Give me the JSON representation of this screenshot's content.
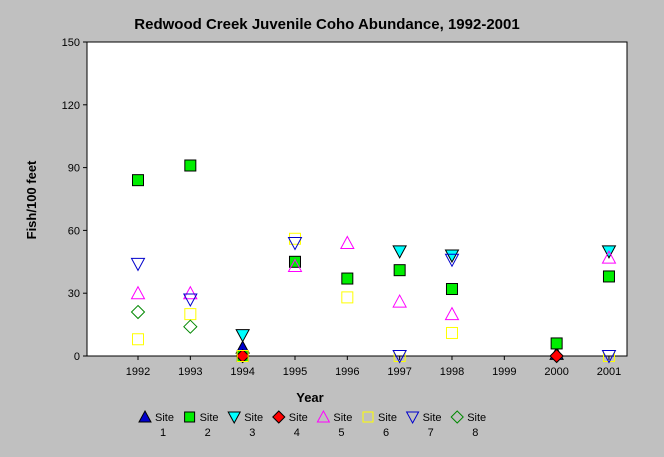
{
  "chart_data": {
    "type": "scatter",
    "title": "Redwood Creek Juvenile Coho Abundance, 1992-2001",
    "xlabel": "Year",
    "ylabel": "Fish/100 feet",
    "x": [
      1992,
      1993,
      1994,
      1995,
      1996,
      1997,
      1998,
      1999,
      2000,
      2001
    ],
    "x_tick_labels": [
      "1992",
      "1993",
      "1994",
      "1995",
      "1996",
      "1997",
      "1998",
      "1999",
      "2000",
      "2001"
    ],
    "ylim": [
      0,
      150
    ],
    "y_ticks": [
      0,
      30,
      60,
      90,
      120,
      150
    ],
    "y_tick_labels": [
      "0",
      "30",
      "60",
      "90",
      "120",
      "150"
    ],
    "grid": false,
    "legend_position": "bottom",
    "series": [
      {
        "name": "Site 1",
        "legend_line1": "Site",
        "legend_line2": "1",
        "marker": "triangle-up",
        "color": "#0000cc",
        "filled": true,
        "points": [
          {
            "x": 1994,
            "y": 4
          },
          {
            "x": 2000,
            "y": 1
          }
        ]
      },
      {
        "name": "Site 2",
        "legend_line1": "Site",
        "legend_line2": "2",
        "marker": "square",
        "color": "#00ee00",
        "filled": true,
        "points": [
          {
            "x": 1992,
            "y": 84
          },
          {
            "x": 1993,
            "y": 91
          },
          {
            "x": 1994,
            "y": 0
          },
          {
            "x": 1995,
            "y": 45
          },
          {
            "x": 1996,
            "y": 37
          },
          {
            "x": 1997,
            "y": 41
          },
          {
            "x": 1998,
            "y": 32
          },
          {
            "x": 2000,
            "y": 6
          },
          {
            "x": 2001,
            "y": 38
          }
        ]
      },
      {
        "name": "Site 3",
        "legend_line1": "Site",
        "legend_line2": "3",
        "marker": "triangle-down",
        "color": "#00ffff",
        "filled": true,
        "points": [
          {
            "x": 1994,
            "y": 10
          },
          {
            "x": 1997,
            "y": 50
          },
          {
            "x": 1998,
            "y": 48
          },
          {
            "x": 2001,
            "y": 50
          }
        ]
      },
      {
        "name": "Site 4",
        "legend_line1": "Site",
        "legend_line2": "4",
        "marker": "diamond",
        "color": "#ff0000",
        "filled": true,
        "points": [
          {
            "x": 1994,
            "y": 0
          },
          {
            "x": 2000,
            "y": 0
          }
        ]
      },
      {
        "name": "Site 5",
        "legend_line1": "Site",
        "legend_line2": "5",
        "marker": "triangle-up",
        "color": "#ff00ff",
        "filled": false,
        "points": [
          {
            "x": 1992,
            "y": 30
          },
          {
            "x": 1993,
            "y": 30
          },
          {
            "x": 1995,
            "y": 43
          },
          {
            "x": 1996,
            "y": 54
          },
          {
            "x": 1997,
            "y": 26
          },
          {
            "x": 1998,
            "y": 20
          },
          {
            "x": 2001,
            "y": 47
          }
        ]
      },
      {
        "name": "Site 6",
        "legend_line1": "Site",
        "legend_line2": "6",
        "marker": "square",
        "color": "#ffff00",
        "filled": false,
        "points": [
          {
            "x": 1992,
            "y": 8
          },
          {
            "x": 1993,
            "y": 20
          },
          {
            "x": 1994,
            "y": 0
          },
          {
            "x": 1995,
            "y": 56
          },
          {
            "x": 1996,
            "y": 28
          },
          {
            "x": 1997,
            "y": 0
          },
          {
            "x": 1998,
            "y": 11
          },
          {
            "x": 2001,
            "y": 0
          }
        ]
      },
      {
        "name": "Site 7",
        "legend_line1": "Site",
        "legend_line2": "7",
        "marker": "triangle-down",
        "color": "#0000cc",
        "filled": false,
        "points": [
          {
            "x": 1992,
            "y": 44
          },
          {
            "x": 1993,
            "y": 27
          },
          {
            "x": 1995,
            "y": 54
          },
          {
            "x": 1997,
            "y": 0
          },
          {
            "x": 1998,
            "y": 46
          },
          {
            "x": 2001,
            "y": 0
          }
        ]
      },
      {
        "name": "Site 8",
        "legend_line1": "Site",
        "legend_line2": "8",
        "marker": "diamond",
        "color": "#008800",
        "filled": false,
        "points": [
          {
            "x": 1992,
            "y": 21
          },
          {
            "x": 1993,
            "y": 14
          }
        ]
      }
    ]
  },
  "colors": {
    "background": "#c0c0c0",
    "plot_background": "#ffffff",
    "marker_outline": "#000000"
  }
}
